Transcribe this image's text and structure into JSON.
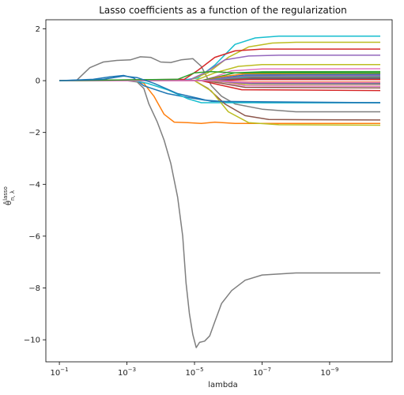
{
  "chart_data": {
    "type": "line",
    "title": "Lasso coefficients as a function of the regularization",
    "xlabel": "lambda",
    "ylabel_base": "θ̂",
    "ylabel_sup": "lasso",
    "ylabel_sub": "n, λ",
    "x_scale": "log-reversed",
    "xlim_log10": [
      -0.6,
      -10.85
    ],
    "ylim": [
      -10.85,
      2.35
    ],
    "x_ticks": [
      {
        "value": -1,
        "base": "10",
        "exp": "−1"
      },
      {
        "value": -3,
        "base": "10",
        "exp": "−3"
      },
      {
        "value": -5,
        "base": "10",
        "exp": "−5"
      },
      {
        "value": -7,
        "base": "10",
        "exp": "−7"
      },
      {
        "value": -9,
        "base": "10",
        "exp": "−9"
      }
    ],
    "y_ticks": [
      {
        "value": 2,
        "label": "2"
      },
      {
        "value": 0,
        "label": "0"
      },
      {
        "value": -2,
        "label": "−2"
      },
      {
        "value": -4,
        "label": "−4"
      },
      {
        "value": -6,
        "label": "−6"
      },
      {
        "value": -8,
        "label": "−8"
      },
      {
        "value": -10,
        "label": "−10"
      }
    ],
    "grid": false,
    "legend": "none",
    "series": [
      {
        "color": "#7f7f7f",
        "points": [
          [
            -1,
            0
          ],
          [
            -1.5,
            0
          ],
          [
            -1.9,
            0.5
          ],
          [
            -2.3,
            0.72
          ],
          [
            -2.7,
            0.78
          ],
          [
            -3.1,
            0.8
          ],
          [
            -3.4,
            0.92
          ],
          [
            -3.7,
            0.9
          ],
          [
            -4.0,
            0.72
          ],
          [
            -4.3,
            0.7
          ],
          [
            -4.6,
            0.8
          ],
          [
            -4.95,
            0.85
          ],
          [
            -5.2,
            0.55
          ],
          [
            -5.5,
            -0.2
          ],
          [
            -5.8,
            -0.6
          ],
          [
            -6.2,
            -0.9
          ],
          [
            -7,
            -1.1
          ],
          [
            -8,
            -1.2
          ],
          [
            -10.5,
            -1.2
          ]
        ]
      },
      {
        "color": "#7f7f7f",
        "points": [
          [
            -1,
            0
          ],
          [
            -3.0,
            0
          ],
          [
            -3.3,
            -0.05
          ],
          [
            -3.5,
            -0.3
          ],
          [
            -3.65,
            -0.9
          ],
          [
            -3.9,
            -1.6
          ],
          [
            -4.1,
            -2.3
          ],
          [
            -4.3,
            -3.2
          ],
          [
            -4.5,
            -4.5
          ],
          [
            -4.65,
            -6
          ],
          [
            -4.75,
            -7.8
          ],
          [
            -4.85,
            -9.0
          ],
          [
            -4.95,
            -9.8
          ],
          [
            -5.05,
            -10.3
          ],
          [
            -5.15,
            -10.1
          ],
          [
            -5.3,
            -10.05
          ],
          [
            -5.45,
            -9.85
          ],
          [
            -5.6,
            -9.3
          ],
          [
            -5.8,
            -8.6
          ],
          [
            -6.1,
            -8.1
          ],
          [
            -6.5,
            -7.7
          ],
          [
            -7.0,
            -7.5
          ],
          [
            -8,
            -7.42
          ],
          [
            -10.5,
            -7.42
          ]
        ]
      },
      {
        "color": "#ff7f0e",
        "points": [
          [
            -1,
            0
          ],
          [
            -3.2,
            0
          ],
          [
            -3.5,
            -0.1
          ],
          [
            -3.8,
            -0.6
          ],
          [
            -4.1,
            -1.3
          ],
          [
            -4.4,
            -1.6
          ],
          [
            -4.8,
            -1.62
          ],
          [
            -5.2,
            -1.65
          ],
          [
            -5.6,
            -1.6
          ],
          [
            -6.2,
            -1.65
          ],
          [
            -8,
            -1.65
          ],
          [
            -10.5,
            -1.65
          ]
        ]
      },
      {
        "color": "#1f77b4",
        "points": [
          [
            -1,
            0
          ],
          [
            -2.0,
            0.05
          ],
          [
            -2.5,
            0.15
          ],
          [
            -2.9,
            0.2
          ],
          [
            -3.2,
            0.1
          ],
          [
            -3.5,
            -0.2
          ],
          [
            -4.2,
            -0.5
          ],
          [
            -4.8,
            -0.65
          ],
          [
            -5.3,
            -0.75
          ],
          [
            -6,
            -0.82
          ],
          [
            -7,
            -0.85
          ],
          [
            -10.5,
            -0.85
          ]
        ]
      },
      {
        "color": "#17becf",
        "points": [
          [
            -1,
            0
          ],
          [
            -3.2,
            0
          ],
          [
            -3.6,
            -0.1
          ],
          [
            -4.2,
            -0.35
          ],
          [
            -4.8,
            -0.7
          ],
          [
            -5.2,
            -0.85
          ],
          [
            -5.6,
            -0.85
          ],
          [
            -10.5,
            -0.85
          ]
        ]
      },
      {
        "color": "#17becf",
        "points": [
          [
            -1,
            0
          ],
          [
            -4.5,
            0
          ],
          [
            -5.1,
            0.1
          ],
          [
            -5.6,
            0.6
          ],
          [
            -6.2,
            1.4
          ],
          [
            -6.8,
            1.65
          ],
          [
            -7.5,
            1.72
          ],
          [
            -10.5,
            1.72
          ]
        ]
      },
      {
        "color": "#bcbd22",
        "points": [
          [
            -1,
            0
          ],
          [
            -4.8,
            0
          ],
          [
            -5.4,
            0.3
          ],
          [
            -6.0,
            0.9
          ],
          [
            -6.6,
            1.3
          ],
          [
            -7.3,
            1.45
          ],
          [
            -8,
            1.48
          ],
          [
            -10.5,
            1.48
          ]
        ]
      },
      {
        "color": "#d62728",
        "points": [
          [
            -1,
            0
          ],
          [
            -4.7,
            0.05
          ],
          [
            -5.1,
            0.4
          ],
          [
            -5.6,
            0.9
          ],
          [
            -6.2,
            1.15
          ],
          [
            -7,
            1.22
          ],
          [
            -10.5,
            1.22
          ]
        ]
      },
      {
        "color": "#9467bd",
        "points": [
          [
            -1,
            0
          ],
          [
            -4.8,
            0
          ],
          [
            -5.3,
            0.3
          ],
          [
            -5.9,
            0.8
          ],
          [
            -6.6,
            0.95
          ],
          [
            -7.5,
            0.98
          ],
          [
            -10.5,
            0.98
          ]
        ]
      },
      {
        "color": "#bcbd22",
        "points": [
          [
            -1,
            0
          ],
          [
            -5.0,
            0
          ],
          [
            -5.6,
            0.3
          ],
          [
            -6.3,
            0.55
          ],
          [
            -7,
            0.62
          ],
          [
            -10.5,
            0.62
          ]
        ]
      },
      {
        "color": "#8c564b",
        "points": [
          [
            -1,
            0
          ],
          [
            -5.0,
            0
          ],
          [
            -5.4,
            -0.3
          ],
          [
            -5.9,
            -0.9
          ],
          [
            -6.5,
            -1.35
          ],
          [
            -7.2,
            -1.5
          ],
          [
            -10.5,
            -1.52
          ]
        ]
      },
      {
        "color": "#bcbd22",
        "points": [
          [
            -1,
            0
          ],
          [
            -5.0,
            0
          ],
          [
            -5.5,
            -0.4
          ],
          [
            -6.0,
            -1.2
          ],
          [
            -6.6,
            -1.62
          ],
          [
            -7.5,
            -1.7
          ],
          [
            -10.5,
            -1.72
          ]
        ]
      },
      {
        "color": "#e377c2",
        "points": [
          [
            -1,
            0
          ],
          [
            -5.2,
            0
          ],
          [
            -5.6,
            0.15
          ],
          [
            -6.1,
            0.38
          ],
          [
            -7,
            0.45
          ],
          [
            -10.5,
            0.46
          ]
        ]
      },
      {
        "color": "#2ca02c",
        "points": [
          [
            -1,
            0
          ],
          [
            -5.2,
            0
          ],
          [
            -5.6,
            0.12
          ],
          [
            -6.2,
            0.3
          ],
          [
            -7,
            0.34
          ],
          [
            -10.5,
            0.35
          ]
        ]
      },
      {
        "color": "#ff7f0e",
        "points": [
          [
            -1,
            0
          ],
          [
            -5.3,
            0
          ],
          [
            -5.8,
            0.15
          ],
          [
            -6.5,
            0.27
          ],
          [
            -10.5,
            0.28
          ]
        ]
      },
      {
        "color": "#1f77b4",
        "points": [
          [
            -1,
            0
          ],
          [
            -5.3,
            0
          ],
          [
            -5.8,
            0.1
          ],
          [
            -6.5,
            0.22
          ],
          [
            -10.5,
            0.24
          ]
        ]
      },
      {
        "color": "#d62728",
        "points": [
          [
            -1,
            0
          ],
          [
            -5.2,
            0
          ],
          [
            -5.7,
            -0.15
          ],
          [
            -6.4,
            -0.35
          ],
          [
            -10.5,
            -0.38
          ]
        ]
      },
      {
        "color": "#9467bd",
        "points": [
          [
            -1,
            0
          ],
          [
            -5.3,
            0
          ],
          [
            -5.8,
            0.08
          ],
          [
            -6.5,
            0.18
          ],
          [
            -10.5,
            0.2
          ]
        ]
      },
      {
        "color": "#8c564b",
        "points": [
          [
            -1,
            0
          ],
          [
            -5.3,
            0
          ],
          [
            -5.8,
            -0.1
          ],
          [
            -6.5,
            -0.26
          ],
          [
            -10.5,
            -0.28
          ]
        ]
      },
      {
        "color": "#e377c2",
        "points": [
          [
            -1,
            0
          ],
          [
            -5.4,
            0
          ],
          [
            -5.9,
            -0.06
          ],
          [
            -6.5,
            -0.2
          ],
          [
            -10.5,
            -0.22
          ]
        ]
      },
      {
        "color": "#7f7f7f",
        "points": [
          [
            -1,
            0
          ],
          [
            -5.4,
            0
          ],
          [
            -5.9,
            0.06
          ],
          [
            -6.5,
            0.15
          ],
          [
            -10.5,
            0.16
          ]
        ]
      },
      {
        "color": "#bcbd22",
        "points": [
          [
            -1,
            0
          ],
          [
            -5.4,
            0
          ],
          [
            -5.9,
            -0.05
          ],
          [
            -6.5,
            -0.14
          ],
          [
            -10.5,
            -0.15
          ]
        ]
      },
      {
        "color": "#17becf",
        "points": [
          [
            -1,
            0
          ],
          [
            -5.4,
            0
          ],
          [
            -5.9,
            0.04
          ],
          [
            -6.5,
            0.11
          ],
          [
            -10.5,
            0.12
          ]
        ]
      },
      {
        "color": "#2ca02c",
        "points": [
          [
            -1,
            0
          ],
          [
            -5.5,
            0
          ],
          [
            -6.0,
            -0.04
          ],
          [
            -6.6,
            -0.09
          ],
          [
            -10.5,
            -0.1
          ]
        ]
      },
      {
        "color": "#1f77b4",
        "points": [
          [
            -1,
            0
          ],
          [
            -5.5,
            0
          ],
          [
            -6.0,
            0.03
          ],
          [
            -6.6,
            0.07
          ],
          [
            -10.5,
            0.08
          ]
        ]
      },
      {
        "color": "#ff7f0e",
        "points": [
          [
            -1,
            0
          ],
          [
            -5.5,
            0
          ],
          [
            -6.0,
            -0.02
          ],
          [
            -6.6,
            -0.05
          ],
          [
            -10.5,
            -0.05
          ]
        ]
      },
      {
        "color": "#d62728",
        "points": [
          [
            -1,
            0
          ],
          [
            -5.5,
            0
          ],
          [
            -6.0,
            0.02
          ],
          [
            -6.6,
            0.04
          ],
          [
            -10.5,
            0.04
          ]
        ]
      },
      {
        "color": "#9467bd",
        "points": [
          [
            -1,
            0
          ],
          [
            -5.6,
            0
          ],
          [
            -6.1,
            -0.06
          ],
          [
            -6.7,
            -0.12
          ],
          [
            -10.5,
            -0.13
          ]
        ]
      },
      {
        "color": "#8c564b",
        "points": [
          [
            -1,
            0
          ],
          [
            -5.6,
            0
          ],
          [
            -6.1,
            0.05
          ],
          [
            -6.7,
            0.1
          ],
          [
            -10.5,
            0.1
          ]
        ]
      },
      {
        "color": "#e377c2",
        "points": [
          [
            -1,
            0
          ],
          [
            -5.6,
            0
          ],
          [
            -6.1,
            -0.03
          ],
          [
            -6.7,
            -0.07
          ],
          [
            -10.5,
            -0.07
          ]
        ]
      },
      {
        "color": "#2ca02c",
        "points": [
          [
            -1,
            0
          ],
          [
            -4.5,
            0.05
          ],
          [
            -5.0,
            0.3
          ],
          [
            -5.5,
            0.35
          ],
          [
            -6.2,
            0.3
          ],
          [
            -10.5,
            0.3
          ]
        ]
      },
      {
        "color": "#1f77b4",
        "points": [
          [
            -1,
            0
          ],
          [
            -2.3,
            0.05
          ],
          [
            -2.9,
            0.18
          ],
          [
            -3.3,
            0.12
          ],
          [
            -3.8,
            -0.1
          ],
          [
            -4.5,
            -0.5
          ],
          [
            -5.5,
            -0.8
          ],
          [
            -10.5,
            -0.85
          ]
        ]
      }
    ]
  }
}
